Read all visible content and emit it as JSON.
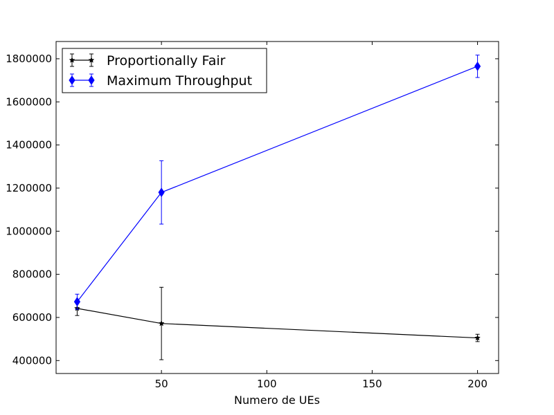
{
  "chart_data": {
    "type": "line",
    "title": "",
    "xlabel": "Numero de UEs",
    "ylabel": "",
    "xlim": [
      0,
      210
    ],
    "ylim": [
      340000,
      1880000
    ],
    "x_ticks": [
      50,
      100,
      150,
      200
    ],
    "x_tick_labels": [
      "50",
      "100",
      "150",
      "200"
    ],
    "y_ticks": [
      400000,
      600000,
      800000,
      1000000,
      1200000,
      1400000,
      1600000,
      1800000
    ],
    "y_tick_labels": [
      "400000",
      "600000",
      "800000",
      "1000000",
      "1200000",
      "1400000",
      "1600000",
      "1800000"
    ],
    "grid": false,
    "legend_position": "top-left",
    "series": [
      {
        "name": "Proportionally Fair",
        "color": "#000000",
        "marker": "star",
        "x": [
          10,
          50,
          200
        ],
        "y": [
          642000,
          572000,
          505000
        ],
        "err": [
          33000,
          168000,
          17000
        ]
      },
      {
        "name": "Maximum Throughput",
        "color": "#0000ff",
        "marker": "diamond",
        "x": [
          10,
          50,
          200
        ],
        "y": [
          673000,
          1180000,
          1765000
        ],
        "err": [
          35000,
          147000,
          52000
        ]
      }
    ]
  }
}
